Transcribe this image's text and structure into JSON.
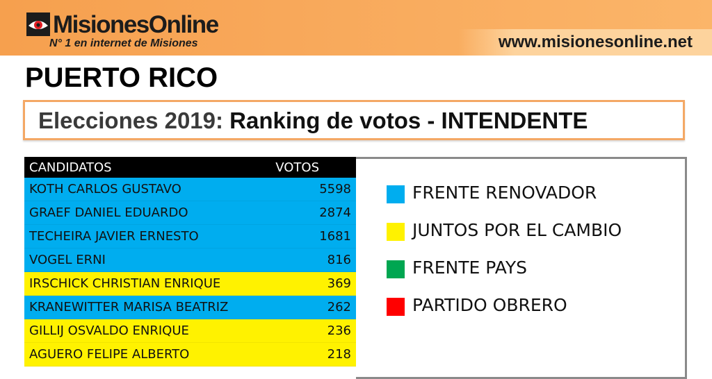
{
  "header": {
    "logo_name": "MisionesOnline",
    "tagline": "N° 1 en internet de Misiones",
    "url": "www.misionesonline.net"
  },
  "place": "PUERTO RICO",
  "title": {
    "prefix": "Elecciones 2019:",
    "main": "Ranking de votos - INTENDENTE"
  },
  "table": {
    "col_candidates": "CANDIDATOS",
    "col_votes": "VOTOS",
    "rows": [
      {
        "name": "KOTH CARLOS GUSTAVO",
        "votes": "5598",
        "party": "FRENTE RENOVADOR"
      },
      {
        "name": "GRAEF DANIEL EDUARDO",
        "votes": "2874",
        "party": "FRENTE RENOVADOR"
      },
      {
        "name": "TECHEIRA JAVIER ERNESTO",
        "votes": "1681",
        "party": "FRENTE RENOVADOR"
      },
      {
        "name": "VOGEL ERNI",
        "votes": "816",
        "party": "FRENTE RENOVADOR"
      },
      {
        "name": "IRSCHICK CHRISTIAN ENRIQUE",
        "votes": "369",
        "party": "JUNTOS POR EL CAMBIO"
      },
      {
        "name": "KRANEWITTER MARISA BEATRIZ",
        "votes": "262",
        "party": "FRENTE RENOVADOR"
      },
      {
        "name": "GILLIJ OSVALDO ENRIQUE",
        "votes": "236",
        "party": "JUNTOS POR EL CAMBIO"
      },
      {
        "name": "AGUERO FELIPE ALBERTO",
        "votes": "218",
        "party": "JUNTOS POR EL CAMBIO"
      }
    ]
  },
  "legend": [
    {
      "label": "FRENTE RENOVADOR",
      "color": "#00adef"
    },
    {
      "label": "JUNTOS POR EL CAMBIO",
      "color": "#fff200"
    },
    {
      "label": "FRENTE PAYS",
      "color": "#00a651"
    },
    {
      "label": "PARTIDO OBRERO",
      "color": "#ff0000"
    }
  ],
  "colors": {
    "header_orange": "#f7a453",
    "title_border": "#f4a865"
  }
}
